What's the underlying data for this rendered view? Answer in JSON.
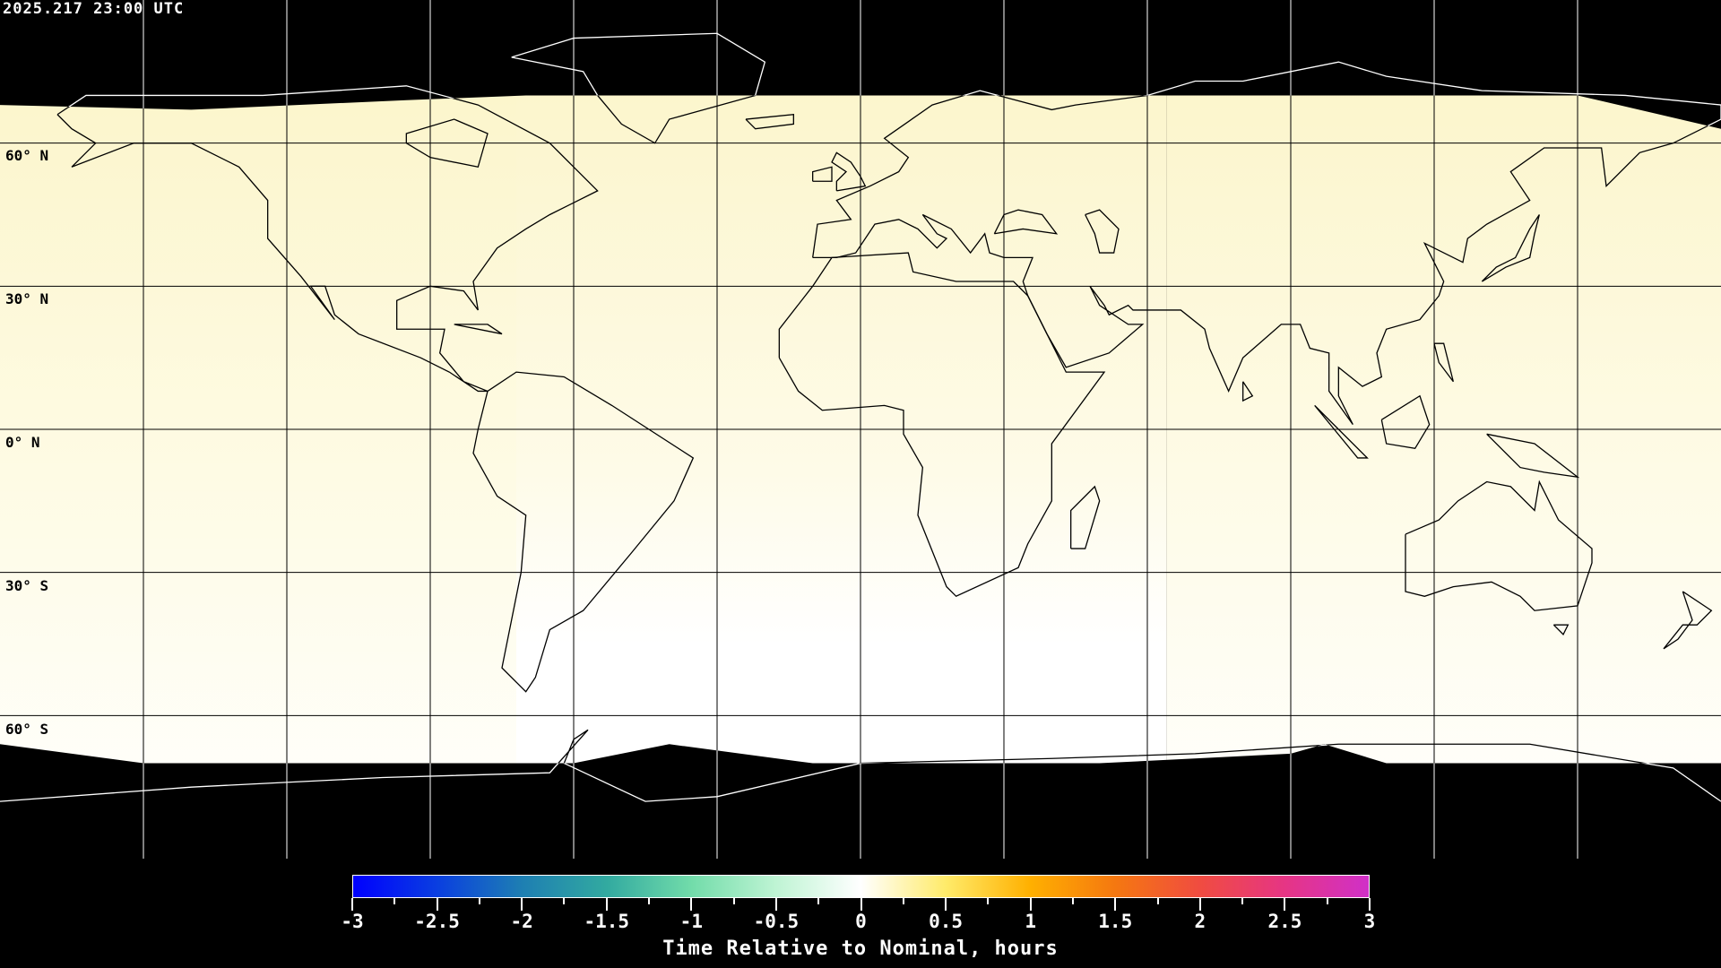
{
  "title": "2025.217 23:00 UTC",
  "map": {
    "projection": "equirectangular",
    "graticule_spacing_deg": 30,
    "lat_labels": [
      "60° N",
      "30° N",
      "0° N",
      "30° S",
      "60° S"
    ],
    "field_colors": {
      "yellow": "#fcf7cc",
      "white": "#ffffff",
      "night": "#000000"
    }
  },
  "colorbar": {
    "min": -3,
    "max": 3,
    "tick_labels": [
      "-3",
      "-2.5",
      "-2",
      "-1.5",
      "-1",
      "-0.5",
      "0",
      "0.5",
      "1",
      "1.5",
      "2",
      "2.5",
      "3"
    ],
    "label": "Time Relative to Nominal, hours",
    "stops": [
      "#0000ff",
      "#0a3fe0",
      "#1e7fb2",
      "#32aaa0",
      "#72dcaa",
      "#bff4d4",
      "#ffffff",
      "#ffeb6a",
      "#ffb000",
      "#f57810",
      "#f04c40",
      "#e63584",
      "#d030c8"
    ]
  }
}
